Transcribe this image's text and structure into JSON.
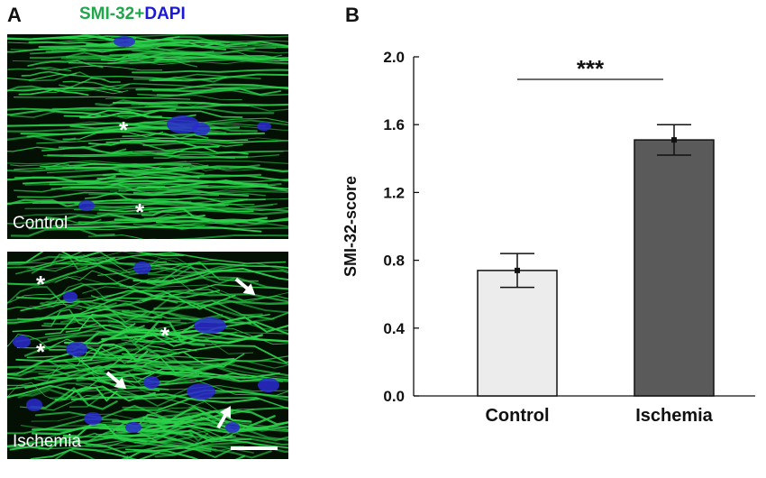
{
  "panel_a": {
    "letter": "A",
    "stain_green": "SMI-32",
    "stain_plus": "+",
    "stain_blue": "DAPI",
    "control_label": "Control",
    "ischemia_label": "Ischemia",
    "asterisk": "*",
    "colors": {
      "fiber": "#2bd14a",
      "nucleus": "#2a2ad0",
      "background": "#041004"
    }
  },
  "panel_b": {
    "letter": "B"
  },
  "chart_data": {
    "type": "bar",
    "categories": [
      "Control",
      "Ischemia"
    ],
    "values": [
      0.74,
      1.51
    ],
    "errors": [
      0.1,
      0.09
    ],
    "ylabel": "SMI-32-score",
    "ylim": [
      0.0,
      2.0
    ],
    "yticks": [
      "0.0",
      "0.4",
      "0.8",
      "1.2",
      "1.6",
      "2.0"
    ],
    "bar_colors": [
      "#ececec",
      "#5a5a5a"
    ],
    "significance": "***",
    "grid": false
  }
}
